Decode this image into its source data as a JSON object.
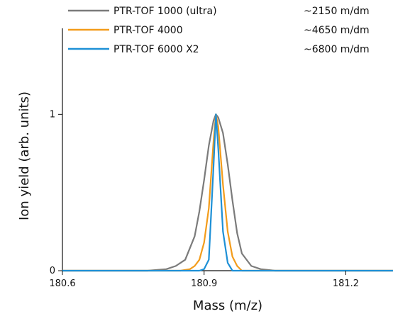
{
  "chart_data": {
    "type": "line",
    "title": "",
    "xlabel": "Mass (m/z)",
    "ylabel": "Ion yield (arb. units)",
    "xlim": [
      180.6,
      181.3
    ],
    "ylim": [
      0,
      1.55
    ],
    "x_ticks": [
      "180.6",
      "180.9",
      "181.2"
    ],
    "y_ticks": [
      "0",
      "1"
    ],
    "grid": false,
    "legend_placement": "top",
    "series": [
      {
        "name": "PTR-TOF 1000 (ultra)",
        "resolution": "~2150 m/dm",
        "color": "#7b7b7b",
        "points": [
          [
            180.6,
            0.0
          ],
          [
            180.7,
            0.0
          ],
          [
            180.78,
            0.0
          ],
          [
            180.82,
            0.01
          ],
          [
            180.84,
            0.03
          ],
          [
            180.86,
            0.07
          ],
          [
            180.88,
            0.22
          ],
          [
            180.89,
            0.38
          ],
          [
            180.9,
            0.58
          ],
          [
            180.91,
            0.8
          ],
          [
            180.92,
            0.96
          ],
          [
            180.925,
            1.0
          ],
          [
            180.93,
            0.98
          ],
          [
            180.94,
            0.88
          ],
          [
            180.95,
            0.68
          ],
          [
            180.96,
            0.45
          ],
          [
            180.97,
            0.24
          ],
          [
            180.98,
            0.11
          ],
          [
            181.0,
            0.03
          ],
          [
            181.02,
            0.01
          ],
          [
            181.05,
            0.0
          ],
          [
            181.3,
            0.0
          ]
        ]
      },
      {
        "name": "PTR-TOF 4000",
        "resolution": "~4650 m/dm",
        "color": "#f39c1b",
        "points": [
          [
            180.6,
            0.0
          ],
          [
            180.7,
            0.0
          ],
          [
            180.85,
            0.0
          ],
          [
            180.87,
            0.01
          ],
          [
            180.88,
            0.03
          ],
          [
            180.89,
            0.07
          ],
          [
            180.9,
            0.18
          ],
          [
            180.91,
            0.4
          ],
          [
            180.92,
            0.83
          ],
          [
            180.925,
            1.0
          ],
          [
            180.93,
            0.92
          ],
          [
            180.94,
            0.55
          ],
          [
            180.95,
            0.25
          ],
          [
            180.96,
            0.09
          ],
          [
            180.97,
            0.03
          ],
          [
            180.98,
            0.0
          ],
          [
            181.3,
            0.0
          ]
        ]
      },
      {
        "name": "PTR-TOF 6000 X2",
        "resolution": "~6800 m/dm",
        "color": "#1e90d6",
        "points": [
          [
            180.6,
            0.0
          ],
          [
            180.7,
            0.0
          ],
          [
            180.89,
            0.0
          ],
          [
            180.9,
            0.01
          ],
          [
            180.91,
            0.07
          ],
          [
            180.92,
            0.67
          ],
          [
            180.925,
            1.0
          ],
          [
            180.93,
            0.78
          ],
          [
            180.94,
            0.25
          ],
          [
            180.95,
            0.05
          ],
          [
            180.96,
            0.0
          ],
          [
            181.3,
            0.0
          ]
        ]
      }
    ]
  }
}
